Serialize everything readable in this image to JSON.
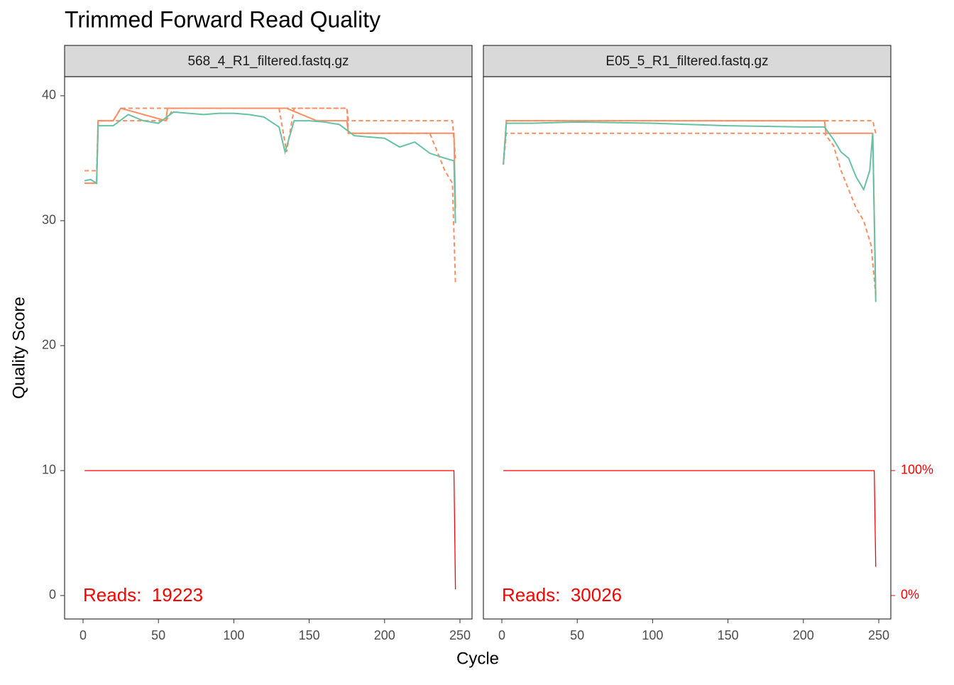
{
  "title": "Trimmed Forward Read Quality",
  "xlabel": "Cycle",
  "ylabel": "Quality Score",
  "chart_data": [
    {
      "type": "line",
      "title": "568_4_R1_filtered.fastq.gz",
      "annotation": "Reads:  19223",
      "annotation_color": "#ff0000",
      "xlim": [
        -12.24,
        258.0
      ],
      "xticks": [
        0,
        50,
        100,
        150,
        200,
        250
      ],
      "ylim": [
        -1.875,
        41.53
      ],
      "yticks": [
        0,
        10,
        20,
        30,
        40
      ],
      "y2lim": [
        -18.75,
        415.3
      ],
      "y2_color": "#ff0000",
      "series": [
        {
          "color": "#fc8d62",
          "linestyle": "dashed",
          "x": [
            1,
            9,
            10,
            25,
            55,
            60,
            130,
            135,
            140,
            175,
            176,
            230,
            240,
            245,
            247
          ],
          "values": [
            33,
            33,
            38,
            38,
            38,
            39,
            39,
            35.5,
            39,
            39,
            37,
            37,
            34,
            33,
            25
          ]
        },
        {
          "color": "#fc8d62",
          "linestyle": "dashed",
          "x": [
            1,
            9,
            10,
            20,
            25,
            55,
            60,
            175,
            176,
            245,
            247
          ],
          "values": [
            34,
            34,
            38,
            38,
            39,
            39,
            39,
            39,
            38,
            38,
            35
          ]
        },
        {
          "color": "#fc8d62",
          "linestyle": "solid",
          "x": [
            1,
            9,
            10,
            20,
            25,
            55,
            56,
            135,
            155,
            175,
            176,
            246,
            247
          ],
          "values": [
            33,
            33,
            38,
            38,
            39,
            38,
            39,
            39,
            38,
            38,
            37,
            37,
            31
          ]
        },
        {
          "color": "#66c2a5",
          "linestyle": "solid",
          "x": [
            1,
            5,
            9,
            10,
            20,
            30,
            40,
            50,
            60,
            70,
            80,
            90,
            100,
            110,
            120,
            130,
            134,
            140,
            150,
            160,
            170,
            180,
            190,
            200,
            210,
            220,
            230,
            240,
            246,
            247
          ],
          "values": [
            33.2,
            33.3,
            33,
            37.6,
            37.6,
            38.5,
            38.0,
            37.8,
            38.7,
            38.6,
            38.5,
            38.6,
            38.6,
            38.5,
            38.3,
            37.5,
            35.5,
            38.0,
            38.0,
            37.9,
            37.7,
            36.8,
            36.7,
            36.6,
            35.9,
            36.3,
            35.4,
            35.0,
            34.8,
            29.8
          ]
        },
        {
          "color": "#ff0000",
          "linestyle": "solid",
          "axis": "y2",
          "x": [
            1,
            246,
            247
          ],
          "values": [
            100,
            100,
            5
          ]
        }
      ]
    },
    {
      "type": "line",
      "title": "E05_5_R1_filtered.fastq.gz",
      "annotation": "Reads:  30026",
      "annotation_color": "#ff0000",
      "xlim": [
        -12.24,
        258.0
      ],
      "xticks": [
        0,
        50,
        100,
        150,
        200,
        250
      ],
      "ylim": [
        -1.875,
        41.53
      ],
      "y2lim": [
        -18.75,
        415.3
      ],
      "y2ticks": [
        {
          "value": 0,
          "label": "0%"
        },
        {
          "value": 100,
          "label": "100%"
        }
      ],
      "y2_color": "#ff0000",
      "series": [
        {
          "color": "#fc8d62",
          "linestyle": "dashed",
          "x": [
            1,
            3,
            214,
            220,
            225,
            235,
            240,
            245,
            248
          ],
          "values": [
            34.5,
            37,
            37,
            36,
            34,
            31,
            30,
            28,
            24
          ]
        },
        {
          "color": "#fc8d62",
          "linestyle": "dashed",
          "x": [
            1,
            3,
            240,
            246,
            248
          ],
          "values": [
            34.5,
            38,
            38,
            38,
            37
          ]
        },
        {
          "color": "#fc8d62",
          "linestyle": "solid",
          "x": [
            1,
            3,
            214,
            215,
            246,
            248
          ],
          "values": [
            34.5,
            38,
            38,
            37,
            37,
            24
          ]
        },
        {
          "color": "#66c2a5",
          "linestyle": "solid",
          "x": [
            1,
            3,
            20,
            50,
            100,
            150,
            200,
            214,
            220,
            225,
            230,
            235,
            240,
            244,
            246,
            248
          ],
          "values": [
            34.5,
            37.8,
            37.8,
            37.9,
            37.8,
            37.6,
            37.5,
            37.5,
            36.5,
            35.5,
            35,
            33.5,
            32.5,
            34,
            37,
            23.5
          ]
        },
        {
          "color": "#ff0000",
          "linestyle": "solid",
          "axis": "y2",
          "x": [
            1,
            247,
            248
          ],
          "values": [
            100,
            100,
            23
          ]
        }
      ]
    }
  ]
}
